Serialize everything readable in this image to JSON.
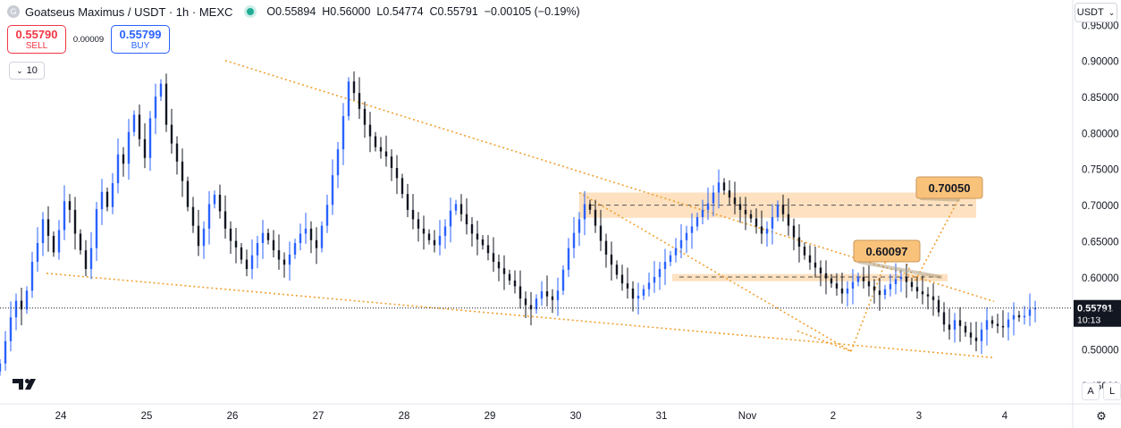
{
  "header": {
    "symbol_icon_letter": "G",
    "title": "Goatseus Maximus / USDT · 1h · MEXC",
    "ohlc": {
      "o": "O0.55894",
      "h": "H0.56000",
      "l": "L0.54774",
      "c": "C0.55791",
      "change": "−0.00105 (−0.19%)"
    }
  },
  "trade": {
    "sell_price": "0.55790",
    "sell_label": "SELL",
    "spread": "0.00009",
    "buy_price": "0.55799",
    "buy_label": "BUY"
  },
  "indicators_toggle": {
    "label": "10",
    "icon": "chevron-down-icon"
  },
  "currency": {
    "label": "USDT",
    "icon": "chevron-down-icon"
  },
  "axis_buttons": {
    "a": "A",
    "l": "L"
  },
  "colors": {
    "up": "#2962ff",
    "down": "#131722",
    "trend": "#f0a030",
    "zone": "#fddcb5",
    "label_bg": "#f9c27a"
  },
  "chart_data": {
    "type": "candlestick",
    "y_ticks": [
      "0.45000",
      "0.50000",
      "0.55000",
      "0.60000",
      "0.65000",
      "0.70000",
      "0.75000",
      "0.80000",
      "0.85000",
      "0.90000",
      "0.95000"
    ],
    "x_ticks": [
      {
        "label": "24",
        "t": 0
      },
      {
        "label": "25",
        "t": 24
      },
      {
        "label": "26",
        "t": 48
      },
      {
        "label": "27",
        "t": 72
      },
      {
        "label": "28",
        "t": 96
      },
      {
        "label": "29",
        "t": 120
      },
      {
        "label": "30",
        "t": 144
      },
      {
        "label": "31",
        "t": 168
      },
      {
        "label": "Nov",
        "t": 192
      },
      {
        "label": "2",
        "t": 216
      },
      {
        "label": "3",
        "t": 240
      },
      {
        "label": "4",
        "t": 264
      }
    ],
    "ylim": [
      0.425,
      0.985
    ],
    "xlim": [
      -17,
      283
    ],
    "last_price": "0.55791",
    "countdown": "10:13",
    "closes": [
      0.481,
      0.512,
      0.545,
      0.568,
      0.556,
      0.582,
      0.622,
      0.648,
      0.681,
      0.658,
      0.635,
      0.666,
      0.706,
      0.694,
      0.661,
      0.638,
      0.612,
      0.641,
      0.695,
      0.719,
      0.698,
      0.731,
      0.771,
      0.758,
      0.802,
      0.826,
      0.792,
      0.766,
      0.821,
      0.851,
      0.869,
      0.812,
      0.786,
      0.761,
      0.734,
      0.698,
      0.672,
      0.644,
      0.668,
      0.702,
      0.715,
      0.692,
      0.668,
      0.651,
      0.642,
      0.625,
      0.612,
      0.631,
      0.648,
      0.662,
      0.652,
      0.638,
      0.625,
      0.618,
      0.632,
      0.648,
      0.661,
      0.668,
      0.652,
      0.641,
      0.672,
      0.701,
      0.742,
      0.778,
      0.824,
      0.872,
      0.856,
      0.834,
      0.812,
      0.796,
      0.781,
      0.775,
      0.768,
      0.752,
      0.738,
      0.716,
      0.694,
      0.681,
      0.668,
      0.661,
      0.652,
      0.645,
      0.658,
      0.671,
      0.693,
      0.702,
      0.688,
      0.674,
      0.661,
      0.653,
      0.645,
      0.634,
      0.622,
      0.613,
      0.605,
      0.596,
      0.588,
      0.571,
      0.562,
      0.556,
      0.571,
      0.581,
      0.574,
      0.569,
      0.582,
      0.611,
      0.641,
      0.662,
      0.681,
      0.702,
      0.694,
      0.672,
      0.651,
      0.632,
      0.618,
      0.604,
      0.592,
      0.585,
      0.571,
      0.575,
      0.584,
      0.593,
      0.601,
      0.612,
      0.622,
      0.631,
      0.641,
      0.652,
      0.662,
      0.671,
      0.684,
      0.694,
      0.703,
      0.718,
      0.732,
      0.721,
      0.711,
      0.702,
      0.694,
      0.688,
      0.682,
      0.671,
      0.661,
      0.668,
      0.684,
      0.701,
      0.688,
      0.672,
      0.656,
      0.643,
      0.631,
      0.621,
      0.614,
      0.606,
      0.599,
      0.592,
      0.585,
      0.578,
      0.585,
      0.594,
      0.601,
      0.595,
      0.588,
      0.582,
      0.576,
      0.584,
      0.591,
      0.598,
      0.601,
      0.594,
      0.587,
      0.581,
      0.577,
      0.574,
      0.569,
      0.552,
      0.535,
      0.528,
      0.541,
      0.533,
      0.524,
      0.517,
      0.512,
      0.528,
      0.541,
      0.536,
      0.533,
      0.531,
      0.542,
      0.548,
      0.545,
      0.547,
      0.556,
      0.558
    ]
  },
  "annotations": {
    "target1": "0.70050",
    "target2": "0.60097"
  }
}
